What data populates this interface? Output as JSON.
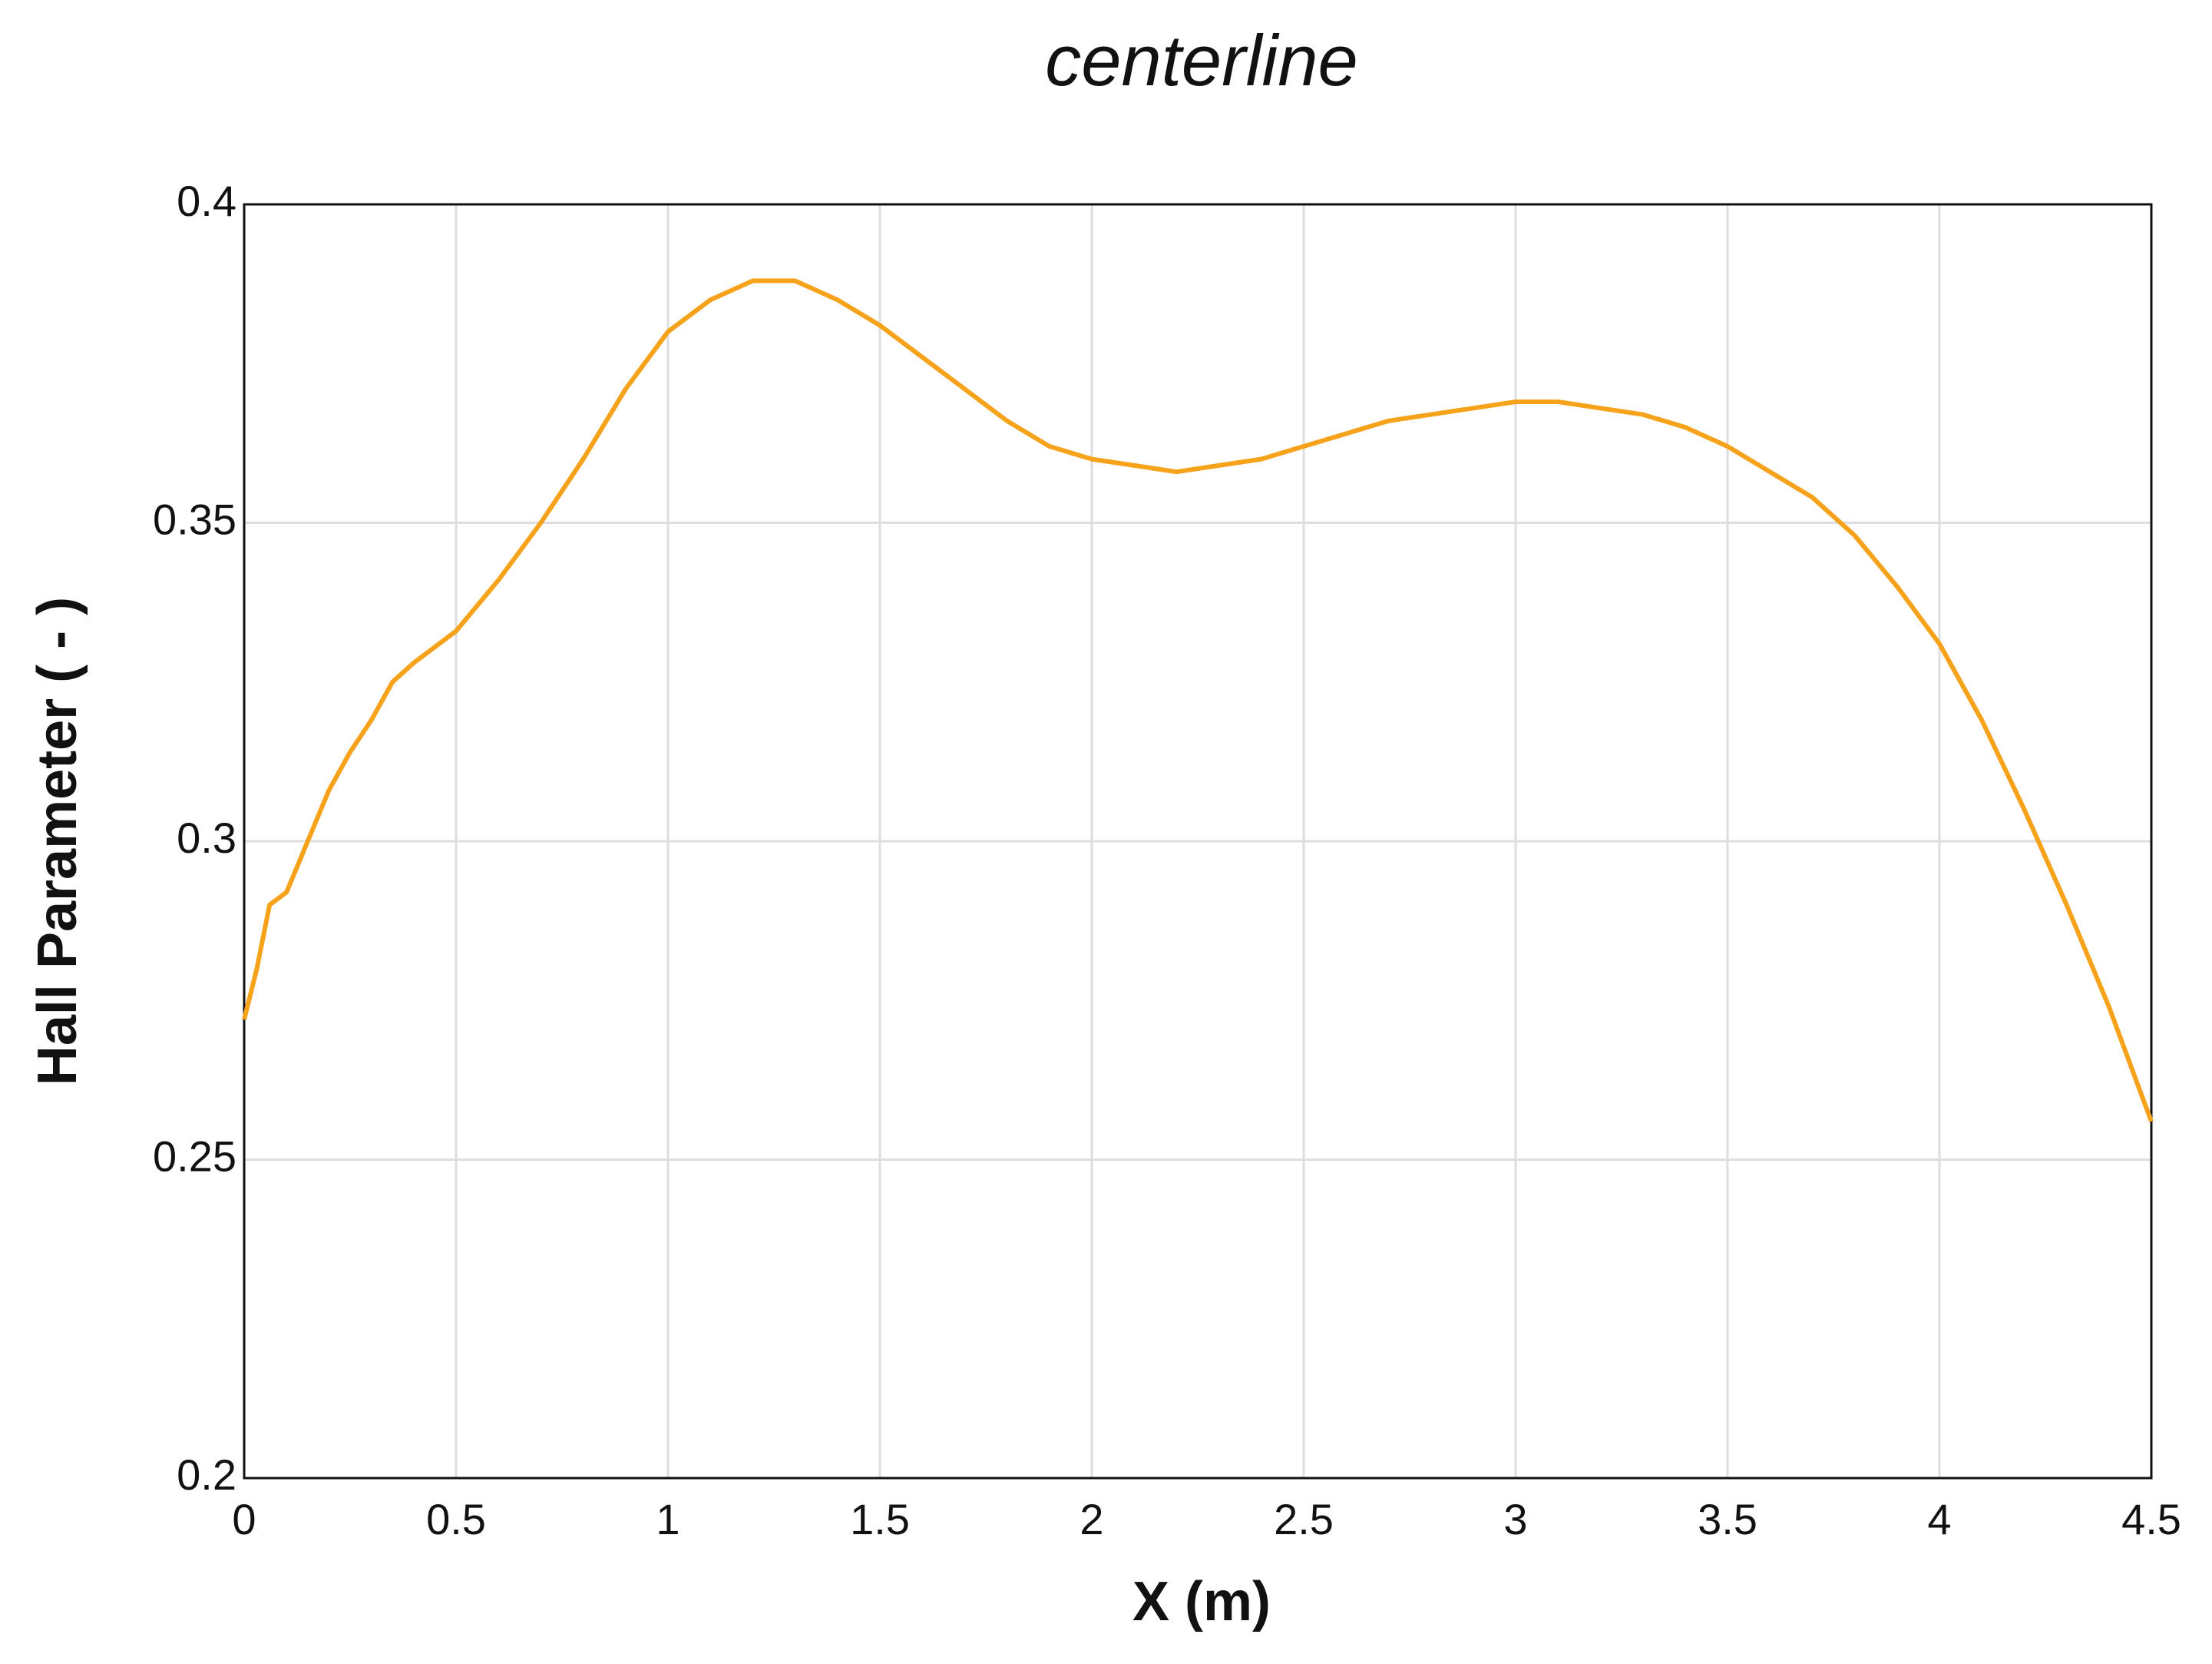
{
  "chart_data": {
    "type": "line",
    "title": "centerline",
    "x_label": "X (m)",
    "y_label": "Hall Parameter ( - )",
    "x": [
      0,
      0.03,
      0.06,
      0.1,
      0.15,
      0.2,
      0.25,
      0.3,
      0.35,
      0.4,
      0.5,
      0.6,
      0.7,
      0.8,
      0.9,
      1.0,
      1.1,
      1.2,
      1.3,
      1.4,
      1.5,
      1.6,
      1.7,
      1.8,
      1.9,
      2.0,
      2.1,
      2.2,
      2.3,
      2.4,
      2.5,
      2.6,
      2.7,
      2.8,
      2.9,
      3.0,
      3.1,
      3.2,
      3.3,
      3.4,
      3.5,
      3.6,
      3.7,
      3.8,
      3.9,
      4.0,
      4.1,
      4.2,
      4.3,
      4.4,
      4.5
    ],
    "series": [
      {
        "color": "#f7a21b",
        "values": [
          0.272,
          0.28,
          0.29,
          0.292,
          0.3,
          0.308,
          0.314,
          0.319,
          0.325,
          0.328,
          0.333,
          0.341,
          0.35,
          0.36,
          0.371,
          0.38,
          0.385,
          0.388,
          0.388,
          0.385,
          0.381,
          0.376,
          0.371,
          0.366,
          0.362,
          0.36,
          0.359,
          0.358,
          0.359,
          0.36,
          0.362,
          0.364,
          0.366,
          0.367,
          0.368,
          0.369,
          0.369,
          0.368,
          0.367,
          0.365,
          0.362,
          0.358,
          0.354,
          0.348,
          0.34,
          0.331,
          0.319,
          0.305,
          0.29,
          0.274,
          0.256
        ]
      }
    ],
    "xlim": [
      0,
      4.5
    ],
    "ylim": [
      0.2,
      0.4
    ],
    "xticks": [
      0,
      0.5,
      1,
      1.5,
      2,
      2.5,
      3,
      3.5,
      4,
      4.5
    ],
    "yticks": [
      0.2,
      0.25,
      0.3,
      0.35,
      0.4
    ],
    "grid": true
  }
}
